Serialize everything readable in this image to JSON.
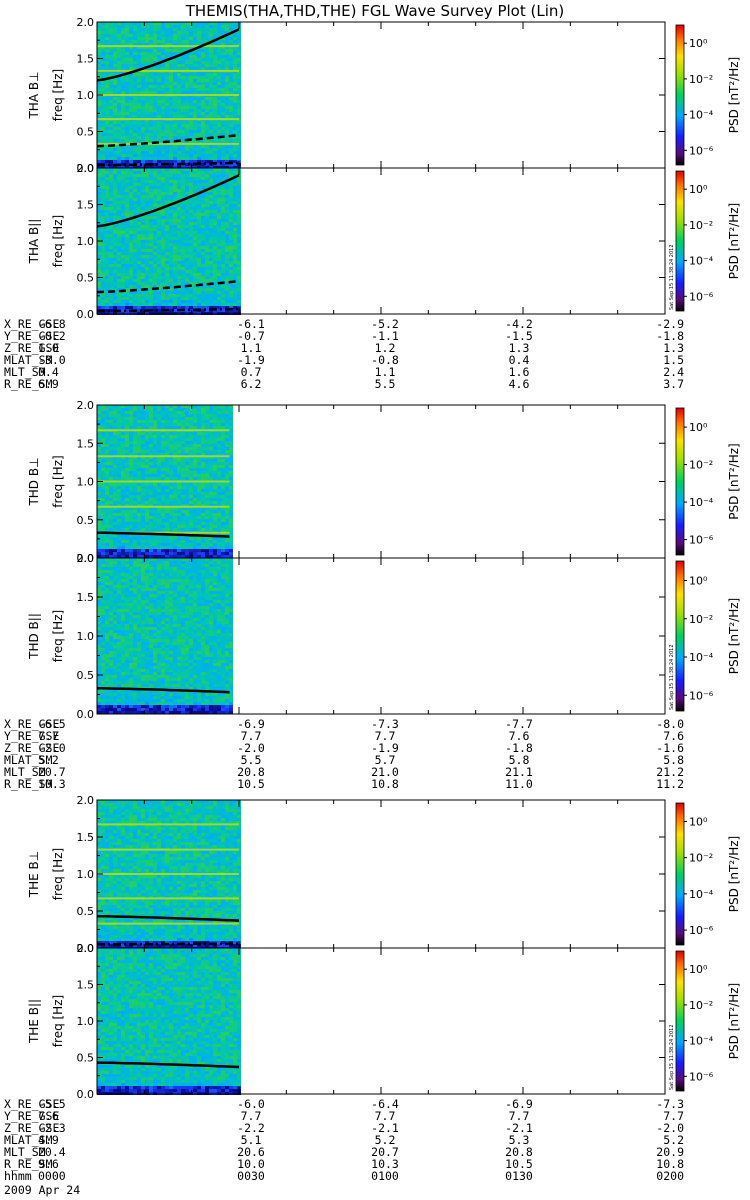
{
  "title": "THEMIS(THA,THD,THE) FGL Wave Survey Plot (Lin)",
  "date": "2009 Apr 24",
  "colorbar": {
    "label": "PSD [nT²/Hz]",
    "ticks": [
      "10⁰",
      "10⁻²",
      "10⁻⁴",
      "10⁻⁶"
    ],
    "stamp": "Sat Sep 15 11:38:24 2012"
  },
  "chart_data": [
    {
      "type": "heatmap",
      "probe": "THA",
      "panels": [
        {
          "ylabel": "THA B⊥",
          "yunit": "freq [Hz]",
          "ylim": [
            0,
            2.0
          ],
          "yticks": [
            "0.0",
            "0.5",
            "1.0",
            "1.5",
            "2.0"
          ],
          "data_extent_min": [
            0,
            30
          ],
          "lines": [
            {
              "style": "solid",
              "values": [
                1.2,
                1.9
              ]
            },
            {
              "style": "dashed",
              "values": [
                0.3,
                0.45
              ]
            },
            {
              "style": "dashdot",
              "values": [
                0.04,
                0.07
              ]
            }
          ]
        },
        {
          "ylabel": "THA B||",
          "yunit": "freq [Hz]",
          "ylim": [
            0,
            2.0
          ],
          "yticks": [
            "0.0",
            "0.5",
            "1.0",
            "1.5",
            "2.0"
          ],
          "data_extent_min": [
            0,
            30
          ],
          "lines": [
            {
              "style": "solid",
              "values": [
                1.2,
                1.9
              ]
            },
            {
              "style": "dashed",
              "values": [
                0.3,
                0.45
              ]
            },
            {
              "style": "dashdot",
              "values": [
                0.04,
                0.07
              ]
            }
          ]
        }
      ],
      "ephem": [
        {
          "name": "X_RE_GSE",
          "values": [
            "-6.8",
            "-6.1",
            "-5.2",
            "-4.2",
            "-2.9"
          ]
        },
        {
          "name": "Y_RE_GSE",
          "values": [
            "-0.2",
            "-0.7",
            "-1.1",
            "-1.5",
            "-1.8"
          ]
        },
        {
          "name": "Z_RE_GSE",
          "values": [
            "1.0",
            "1.1",
            "1.2",
            "1.3",
            "1.3"
          ]
        },
        {
          "name": "MLAT_SM",
          "values": [
            "-3.0",
            "-1.9",
            "-0.8",
            "0.4",
            "1.5"
          ]
        },
        {
          "name": "MLT_SM",
          "values": [
            "0.4",
            "0.7",
            "1.1",
            "1.6",
            "2.4"
          ]
        },
        {
          "name": "R_RE_SM",
          "values": [
            "6.9",
            "6.2",
            "5.5",
            "4.6",
            "3.7"
          ]
        }
      ]
    },
    {
      "type": "heatmap",
      "probe": "THD",
      "panels": [
        {
          "ylabel": "THD B⊥",
          "yunit": "freq [Hz]",
          "ylim": [
            0,
            2.0
          ],
          "yticks": [
            "0.0",
            "0.5",
            "1.0",
            "1.5",
            "2.0"
          ],
          "data_extent_min": [
            0,
            28
          ],
          "lines": [
            {
              "style": "solid",
              "values": [
                0.33,
                0.28
              ]
            }
          ]
        },
        {
          "ylabel": "THD B||",
          "yunit": "freq [Hz]",
          "ylim": [
            0,
            2.0
          ],
          "yticks": [
            "0.0",
            "0.5",
            "1.0",
            "1.5",
            "2.0"
          ],
          "data_extent_min": [
            0,
            28
          ],
          "lines": [
            {
              "style": "solid",
              "values": [
                0.33,
                0.28
              ]
            }
          ]
        }
      ],
      "ephem": [
        {
          "name": "X_RE_GSE",
          "values": [
            "-6.5",
            "-6.9",
            "-7.3",
            "-7.7",
            "-8.0"
          ]
        },
        {
          "name": "Y_RE_GSE",
          "values": [
            "7.7",
            "7.7",
            "7.7",
            "7.6",
            "7.6"
          ]
        },
        {
          "name": "Z_RE_GSE",
          "values": [
            "-2.0",
            "-2.0",
            "-1.9",
            "-1.8",
            "-1.6"
          ]
        },
        {
          "name": "MLAT_SM",
          "values": [
            "5.2",
            "5.5",
            "5.7",
            "5.8",
            "5.8"
          ]
        },
        {
          "name": "MLT_SM",
          "values": [
            "20.7",
            "20.8",
            "21.0",
            "21.1",
            "21.2"
          ]
        },
        {
          "name": "R_RE_SM",
          "values": [
            "10.3",
            "10.5",
            "10.8",
            "11.0",
            "11.2"
          ]
        }
      ]
    },
    {
      "type": "heatmap",
      "probe": "THE",
      "panels": [
        {
          "ylabel": "THE B⊥",
          "yunit": "freq [Hz]",
          "ylim": [
            0,
            2.0
          ],
          "yticks": [
            "0.0",
            "0.5",
            "1.0",
            "1.5",
            "2.0"
          ],
          "data_extent_min": [
            0,
            30
          ],
          "lines": [
            {
              "style": "solid",
              "values": [
                0.43,
                0.37
              ]
            },
            {
              "style": "dashdot",
              "values": [
                0.05,
                0.06
              ]
            }
          ]
        },
        {
          "ylabel": "THE B||",
          "yunit": "freq [Hz]",
          "ylim": [
            0,
            2.0
          ],
          "yticks": [
            "0.0",
            "0.5",
            "1.0",
            "1.5",
            "2.0"
          ],
          "data_extent_min": [
            0,
            30
          ],
          "lines": [
            {
              "style": "solid",
              "values": [
                0.43,
                0.37
              ]
            }
          ]
        }
      ],
      "ephem": [
        {
          "name": "X_RE_GSE",
          "values": [
            "-5.5",
            "-6.0",
            "-6.4",
            "-6.9",
            "-7.3"
          ]
        },
        {
          "name": "Y_RE_GSE",
          "values": [
            "7.6",
            "7.7",
            "7.7",
            "7.7",
            "7.7"
          ]
        },
        {
          "name": "Z_RE_GSE",
          "values": [
            "-2.3",
            "-2.2",
            "-2.1",
            "-2.1",
            "-2.0"
          ]
        },
        {
          "name": "MLAT_SM",
          "values": [
            "4.9",
            "5.1",
            "5.2",
            "5.3",
            "5.2"
          ]
        },
        {
          "name": "MLT_SM",
          "values": [
            "20.4",
            "20.6",
            "20.7",
            "20.8",
            "20.9"
          ]
        },
        {
          "name": "R_RE_SM",
          "values": [
            "9.6",
            "10.0",
            "10.3",
            "10.5",
            "10.8"
          ]
        },
        {
          "name": "hhmm",
          "values": [
            "0000",
            "0030",
            "0100",
            "0130",
            "0200"
          ]
        }
      ]
    }
  ]
}
